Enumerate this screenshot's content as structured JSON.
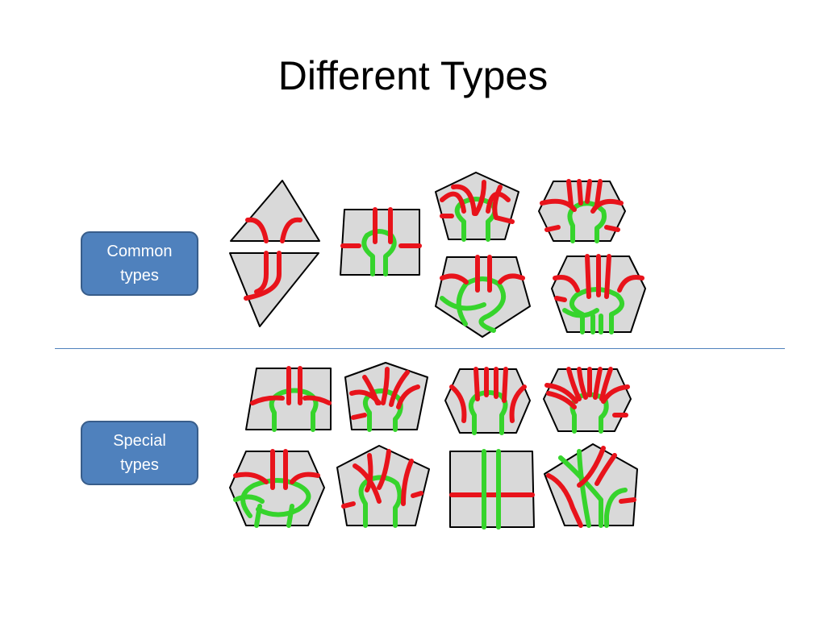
{
  "slide": {
    "title": "Different Types",
    "labels": {
      "common": [
        "Common",
        "types"
      ],
      "special": [
        "Special",
        "types"
      ]
    },
    "colors": {
      "accent": "#4f81bd",
      "accent_border": "#385d8a",
      "tile_fill": "#d9d9d9",
      "strand_red": "#e8131b",
      "strand_green": "#36d42c"
    }
  }
}
